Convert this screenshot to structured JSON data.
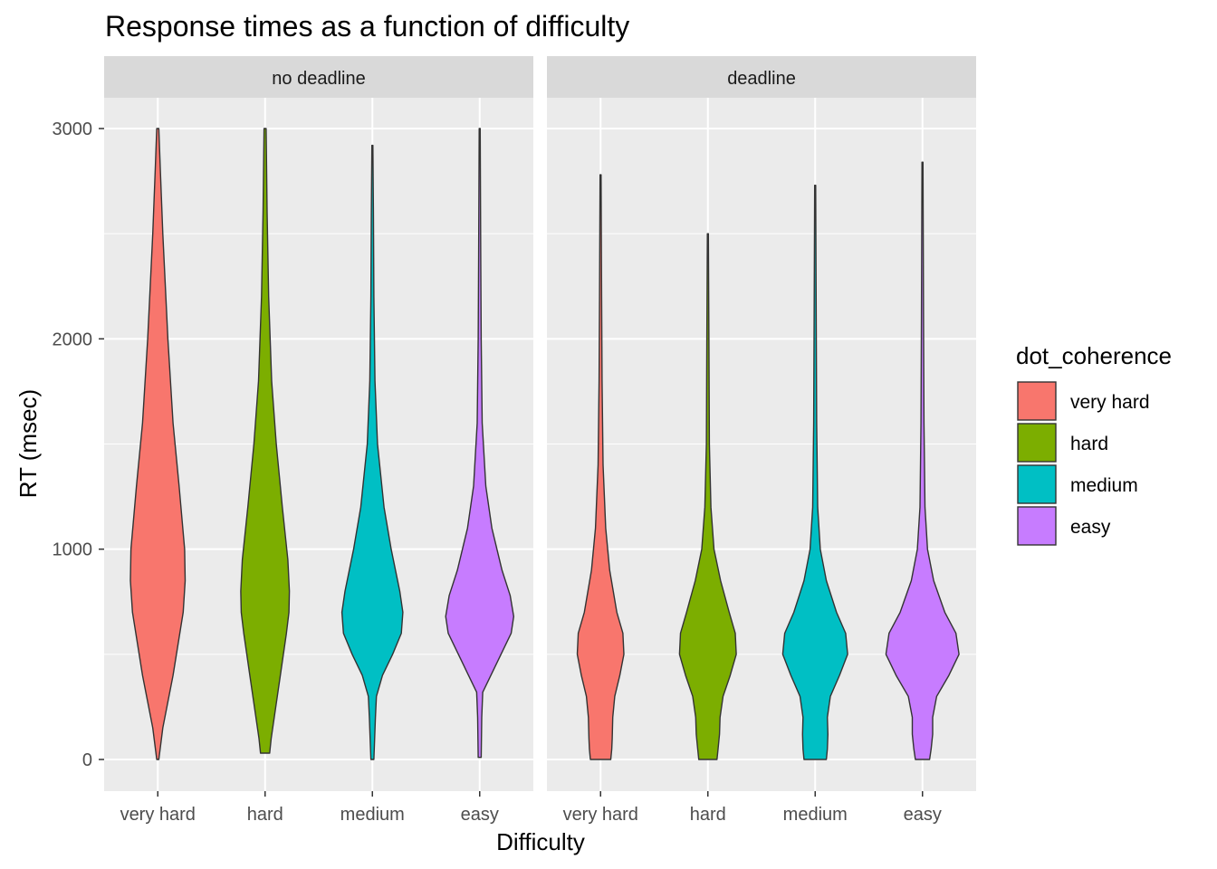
{
  "chart_data": {
    "type": "violin",
    "title": "Response times as a function of difficulty",
    "xlabel": "Difficulty",
    "ylabel": "RT (msec)",
    "ylim": [
      -150,
      3150
    ],
    "y_ticks": [
      0,
      1000,
      2000,
      3000
    ],
    "y_tick_labels": [
      "0",
      "1000",
      "2000",
      "3000"
    ],
    "grid": true,
    "categories": [
      "very hard",
      "hard",
      "medium",
      "easy"
    ],
    "legend": {
      "title": "dot_coherence",
      "position": "right",
      "entries": [
        "very hard",
        "hard",
        "medium",
        "easy"
      ]
    },
    "colors": {
      "very hard": "#F8766D",
      "hard": "#7CAE00",
      "medium": "#00BFC4",
      "easy": "#C77CFF",
      "panel_bg": "#EBEBEB",
      "strip_bg": "#D9D9D9",
      "grid": "#FFFFFF",
      "outline": "#333333"
    },
    "panels": [
      {
        "label": "no deadline",
        "violins": [
          {
            "category": "very hard",
            "min": 0,
            "max": 3000,
            "profile": [
              [
                0,
                0.02
              ],
              [
                150,
                0.1
              ],
              [
                400,
                0.3
              ],
              [
                700,
                0.5
              ],
              [
                850,
                0.54
              ],
              [
                1000,
                0.53
              ],
              [
                1300,
                0.42
              ],
              [
                1600,
                0.3
              ],
              [
                2000,
                0.2
              ],
              [
                2500,
                0.1
              ],
              [
                2800,
                0.05
              ],
              [
                3000,
                0.02
              ]
            ]
          },
          {
            "category": "hard",
            "min": 30,
            "max": 3000,
            "profile": [
              [
                30,
                0.09
              ],
              [
                100,
                0.12
              ],
              [
                400,
                0.3
              ],
              [
                600,
                0.42
              ],
              [
                700,
                0.47
              ],
              [
                800,
                0.48
              ],
              [
                950,
                0.45
              ],
              [
                1200,
                0.34
              ],
              [
                1500,
                0.22
              ],
              [
                1800,
                0.13
              ],
              [
                2200,
                0.07
              ],
              [
                2600,
                0.04
              ],
              [
                3000,
                0.02
              ]
            ]
          },
          {
            "category": "medium",
            "min": 0,
            "max": 2920,
            "profile": [
              [
                0,
                0.03
              ],
              [
                200,
                0.06
              ],
              [
                300,
                0.08
              ],
              [
                400,
                0.2
              ],
              [
                500,
                0.4
              ],
              [
                600,
                0.57
              ],
              [
                700,
                0.6
              ],
              [
                800,
                0.54
              ],
              [
                1000,
                0.37
              ],
              [
                1200,
                0.23
              ],
              [
                1500,
                0.1
              ],
              [
                1800,
                0.05
              ],
              [
                2200,
                0.03
              ],
              [
                2600,
                0.02
              ],
              [
                2920,
                0.01
              ]
            ]
          },
          {
            "category": "easy",
            "min": 10,
            "max": 3000,
            "profile": [
              [
                10,
                0.03
              ],
              [
                200,
                0.04
              ],
              [
                320,
                0.06
              ],
              [
                400,
                0.22
              ],
              [
                500,
                0.42
              ],
              [
                600,
                0.62
              ],
              [
                680,
                0.67
              ],
              [
                780,
                0.6
              ],
              [
                900,
                0.44
              ],
              [
                1100,
                0.24
              ],
              [
                1300,
                0.12
              ],
              [
                1600,
                0.05
              ],
              [
                2000,
                0.03
              ],
              [
                2400,
                0.02
              ],
              [
                3000,
                0.01
              ]
            ]
          }
        ]
      },
      {
        "label": "deadline",
        "violins": [
          {
            "category": "very hard",
            "min": 0,
            "max": 2780,
            "profile": [
              [
                0,
                0.2
              ],
              [
                50,
                0.22
              ],
              [
                100,
                0.23
              ],
              [
                200,
                0.24
              ],
              [
                300,
                0.28
              ],
              [
                400,
                0.38
              ],
              [
                500,
                0.46
              ],
              [
                600,
                0.44
              ],
              [
                700,
                0.32
              ],
              [
                900,
                0.18
              ],
              [
                1100,
                0.1
              ],
              [
                1400,
                0.05
              ],
              [
                1800,
                0.03
              ],
              [
                2200,
                0.02
              ],
              [
                2780,
                0.01
              ]
            ]
          },
          {
            "category": "hard",
            "min": 0,
            "max": 2500,
            "profile": [
              [
                0,
                0.18
              ],
              [
                50,
                0.2
              ],
              [
                120,
                0.23
              ],
              [
                200,
                0.24
              ],
              [
                300,
                0.3
              ],
              [
                400,
                0.44
              ],
              [
                500,
                0.56
              ],
              [
                600,
                0.54
              ],
              [
                700,
                0.42
              ],
              [
                850,
                0.25
              ],
              [
                1000,
                0.12
              ],
              [
                1200,
                0.06
              ],
              [
                1500,
                0.03
              ],
              [
                2000,
                0.02
              ],
              [
                2500,
                0.01
              ]
            ]
          },
          {
            "category": "medium",
            "min": 0,
            "max": 2730,
            "profile": [
              [
                0,
                0.22
              ],
              [
                50,
                0.24
              ],
              [
                120,
                0.25
              ],
              [
                200,
                0.24
              ],
              [
                300,
                0.3
              ],
              [
                400,
                0.48
              ],
              [
                500,
                0.64
              ],
              [
                600,
                0.6
              ],
              [
                700,
                0.42
              ],
              [
                850,
                0.22
              ],
              [
                1000,
                0.1
              ],
              [
                1200,
                0.05
              ],
              [
                1600,
                0.03
              ],
              [
                2100,
                0.02
              ],
              [
                2730,
                0.01
              ]
            ]
          },
          {
            "category": "easy",
            "min": 0,
            "max": 2840,
            "profile": [
              [
                0,
                0.14
              ],
              [
                50,
                0.17
              ],
              [
                120,
                0.2
              ],
              [
                200,
                0.2
              ],
              [
                300,
                0.28
              ],
              [
                400,
                0.52
              ],
              [
                500,
                0.72
              ],
              [
                600,
                0.66
              ],
              [
                700,
                0.44
              ],
              [
                850,
                0.22
              ],
              [
                1000,
                0.1
              ],
              [
                1200,
                0.05
              ],
              [
                1600,
                0.03
              ],
              [
                2100,
                0.02
              ],
              [
                2840,
                0.01
              ]
            ]
          }
        ]
      }
    ]
  }
}
